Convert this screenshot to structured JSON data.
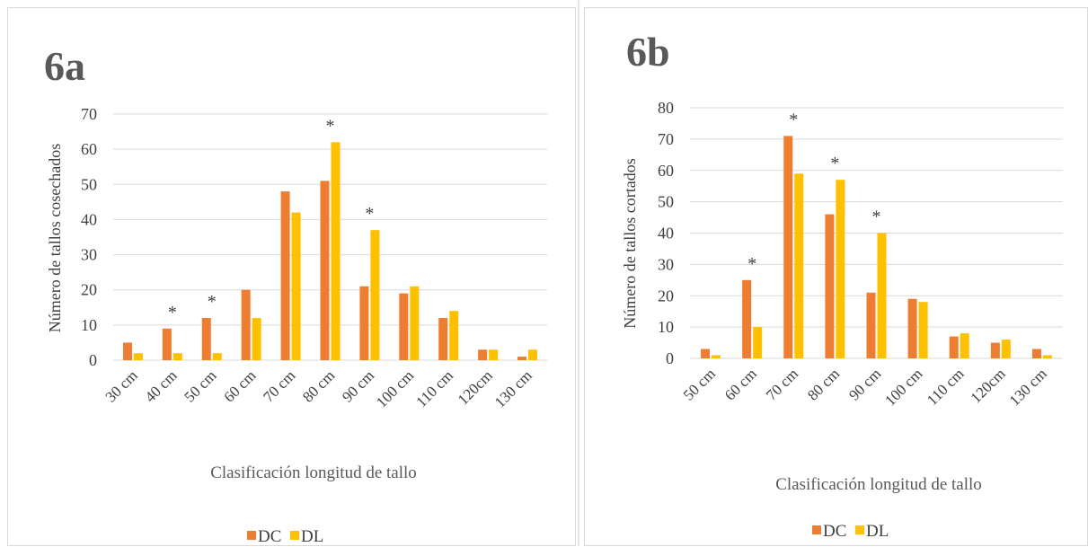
{
  "chart_data": [
    {
      "type": "bar",
      "title": "6a",
      "xlabel": "Clasificación longitud de tallo",
      "ylabel": "Número de tallos cosechados",
      "ylim": [
        0,
        70
      ],
      "yticks": [
        0,
        10,
        20,
        30,
        40,
        50,
        60,
        70
      ],
      "categories": [
        "30 cm",
        "40 cm",
        "50 cm",
        "60 cm",
        "70 cm",
        "80 cm",
        "90 cm",
        "100 cm",
        "110 cm",
        "120cm",
        "130 cm"
      ],
      "series": [
        {
          "name": "DC",
          "color": "#ED7D31",
          "values": [
            5,
            9,
            12,
            20,
            48,
            51,
            21,
            19,
            12,
            3,
            1
          ]
        },
        {
          "name": "DL",
          "color": "#FFC000",
          "values": [
            2,
            2,
            2,
            12,
            42,
            62,
            37,
            21,
            14,
            3,
            3
          ]
        }
      ],
      "annotations": [
        {
          "category": "40 cm",
          "text": "*"
        },
        {
          "category": "50 cm",
          "text": "*"
        },
        {
          "category": "80 cm",
          "text": "*"
        },
        {
          "category": "90 cm",
          "text": "*"
        }
      ],
      "grid": true,
      "legend": "bottom"
    },
    {
      "type": "bar",
      "title": "6b",
      "xlabel": "Clasificación longitud de tallo",
      "ylabel": "Número de tallos cortados",
      "ylim": [
        0,
        80
      ],
      "yticks": [
        0,
        10,
        20,
        30,
        40,
        50,
        60,
        70,
        80
      ],
      "categories": [
        "50 cm",
        "60 cm",
        "70 cm",
        "80 cm",
        "90 cm",
        "100 cm",
        "110 cm",
        "120cm",
        "130 cm"
      ],
      "series": [
        {
          "name": "DC",
          "color": "#ED7D31",
          "values": [
            3,
            25,
            71,
            46,
            21,
            19,
            7,
            5,
            3
          ]
        },
        {
          "name": "DL",
          "color": "#FFC000",
          "values": [
            1,
            10,
            59,
            57,
            40,
            18,
            8,
            6,
            1
          ]
        }
      ],
      "annotations": [
        {
          "category": "60 cm",
          "text": "*"
        },
        {
          "category": "70 cm",
          "text": "*"
        },
        {
          "category": "80 cm",
          "text": "*"
        },
        {
          "category": "90 cm",
          "text": "*"
        }
      ],
      "grid": true,
      "legend": "bottom"
    }
  ]
}
